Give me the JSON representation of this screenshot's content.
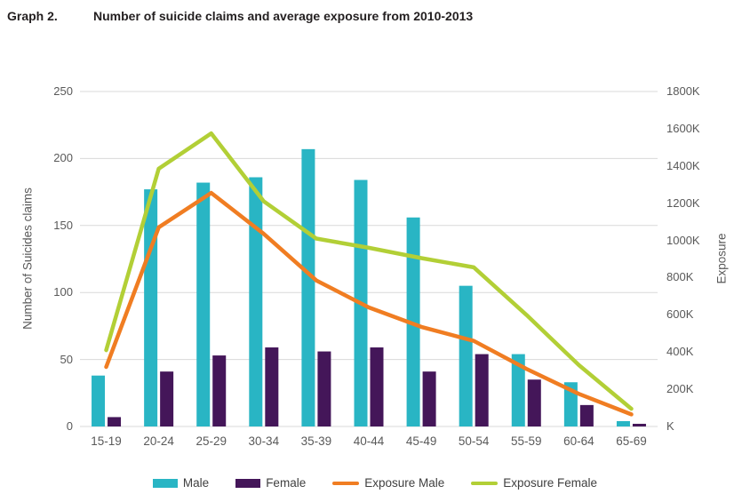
{
  "header": {
    "label": "Graph 2.",
    "title": "Number of suicide claims and average exposure from 2010-2013"
  },
  "chart_data": {
    "type": "bar",
    "subtype": "combo bar+line, dual axis",
    "title": "Number of suicide claims and average exposure from 2010-2013",
    "categories": [
      "15-19",
      "20-24",
      "25-29",
      "30-34",
      "35-39",
      "40-44",
      "45-49",
      "50-54",
      "55-59",
      "60-64",
      "65-69"
    ],
    "series": [
      {
        "name": "Male",
        "type": "bar",
        "axis": "left",
        "color": "#29b5c4",
        "values": [
          38,
          177,
          182,
          186,
          207,
          184,
          156,
          105,
          54,
          33,
          4
        ]
      },
      {
        "name": "Female",
        "type": "bar",
        "axis": "left",
        "color": "#441659",
        "values": [
          7,
          41,
          53,
          59,
          56,
          59,
          41,
          54,
          35,
          16,
          2
        ]
      },
      {
        "name": "Exposure Male",
        "type": "line",
        "axis": "right",
        "color": "#f07d22",
        "values": [
          320,
          1070,
          1255,
          1035,
          785,
          640,
          535,
          460,
          310,
          175,
          65
        ]
      },
      {
        "name": "Exposure Female",
        "type": "line",
        "axis": "right",
        "color": "#b2cf36",
        "values": [
          410,
          1385,
          1575,
          1210,
          1010,
          960,
          905,
          855,
          600,
          330,
          95
        ]
      }
    ],
    "left_axis": {
      "title": "Number of Suicides claims",
      "min": 0,
      "max": 250,
      "step": 50,
      "tick_labels": [
        "0",
        "50",
        "100",
        "150",
        "200",
        "250"
      ]
    },
    "right_axis": {
      "title": "Exposure",
      "min": 0,
      "max": 1800,
      "step": 200,
      "unit": "K",
      "tick_labels": [
        "K",
        "200K",
        "400K",
        "600K",
        "800K",
        "1000K",
        "1200K",
        "1400K",
        "1600K",
        "1800K"
      ]
    },
    "legend": [
      "Male",
      "Female",
      "Exposure Male",
      "Exposure Female"
    ],
    "legend_position": "bottom",
    "grid": true,
    "gridline_color": "#d9d9d9",
    "text_color": "#595959"
  }
}
